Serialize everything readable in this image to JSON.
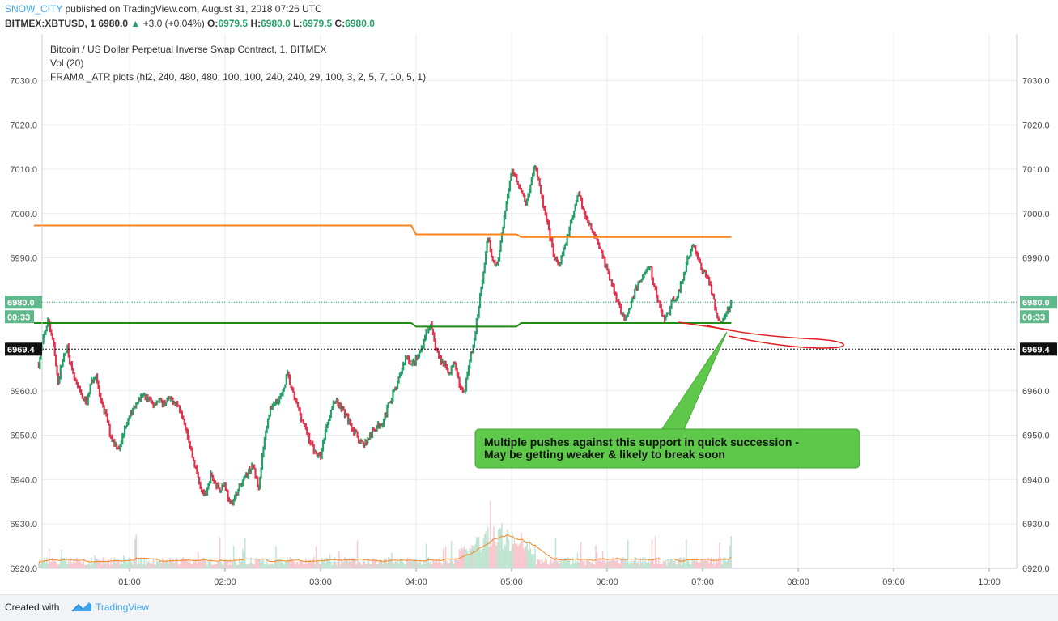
{
  "header": {
    "author": "SNOW_CITY",
    "published": "published on TradingView.com, August 31, 2018 07:26 UTC",
    "symbol": "BITMEX:XBTUSD, 1",
    "last": "6980.0",
    "change_arrow": "▲",
    "change": "+3.0 (+0.04%)",
    "o_label": "O:",
    "o": "6979.5",
    "h_label": "H:",
    "h": "6980.0",
    "l_label": "L:",
    "l": "6979.5",
    "c_label": "C:",
    "c": "6980.0"
  },
  "legend": [
    "Bitcoin / US Dollar Perpetual Inverse Swap Contract, 1, BITMEX",
    "Vol (20)",
    "FRAMA _ATR plots (hl2, 240, 480, 480, 100, 100, 240, 240, 29, 100, 3, 2, 5, 7, 10, 5, 1)"
  ],
  "annotation": [
    "Multiple pushes against this support in quick succession -",
    "May be getting weaker & likely to break soon"
  ],
  "footer": {
    "created_with": "Created with",
    "brand": "TradingView"
  },
  "colors": {
    "up": "#26a069",
    "down": "#e0344e",
    "orange": "#f5841f",
    "green_line": "#1e8c10",
    "callout": "#5ec84a",
    "brand": "#3ca6f0"
  },
  "chart_data": {
    "type": "candlestick",
    "y_ticks": [
      "7030.0",
      "7020.0",
      "7010.0",
      "7000.0",
      "6990.0",
      "6980.0",
      "6970.0",
      "6960.0",
      "6950.0",
      "6940.0",
      "6930.0",
      "6920.0"
    ],
    "x_ticks": [
      "01:00",
      "02:00",
      "03:00",
      "04:00",
      "05:00",
      "06:00",
      "07:00",
      "08:00",
      "09:00",
      "10:00"
    ],
    "ylim": [
      6919,
      7035
    ],
    "xlim_hours": [
      0.0,
      10.22
    ],
    "last_price_label": "6980.0",
    "countdown": "00:33",
    "crosshair_price": "6969.4",
    "close_path": [
      [
        0.05,
        6966
      ],
      [
        0.1,
        6972
      ],
      [
        0.15,
        6976
      ],
      [
        0.2,
        6971
      ],
      [
        0.25,
        6962
      ],
      [
        0.3,
        6967
      ],
      [
        0.35,
        6970
      ],
      [
        0.4,
        6964
      ],
      [
        0.45,
        6961
      ],
      [
        0.5,
        6959
      ],
      [
        0.55,
        6957
      ],
      [
        0.6,
        6962
      ],
      [
        0.65,
        6964
      ],
      [
        0.7,
        6957
      ],
      [
        0.75,
        6955
      ],
      [
        0.8,
        6950
      ],
      [
        0.85,
        6948
      ],
      [
        0.9,
        6947
      ],
      [
        0.95,
        6952
      ],
      [
        1.0,
        6954
      ],
      [
        1.05,
        6957
      ],
      [
        1.1,
        6958
      ],
      [
        1.15,
        6959
      ],
      [
        1.2,
        6958
      ],
      [
        1.25,
        6957
      ],
      [
        1.3,
        6958
      ],
      [
        1.35,
        6957
      ],
      [
        1.4,
        6958
      ],
      [
        1.45,
        6958
      ],
      [
        1.5,
        6957
      ],
      [
        1.55,
        6955
      ],
      [
        1.6,
        6951
      ],
      [
        1.65,
        6946
      ],
      [
        1.7,
        6942
      ],
      [
        1.75,
        6938
      ],
      [
        1.8,
        6936
      ],
      [
        1.85,
        6941
      ],
      [
        1.9,
        6939
      ],
      [
        1.95,
        6938
      ],
      [
        2.0,
        6939
      ],
      [
        2.05,
        6934
      ],
      [
        2.1,
        6936
      ],
      [
        2.15,
        6938
      ],
      [
        2.2,
        6940
      ],
      [
        2.25,
        6942
      ],
      [
        2.3,
        6943
      ],
      [
        2.35,
        6938
      ],
      [
        2.4,
        6947
      ],
      [
        2.45,
        6954
      ],
      [
        2.5,
        6957
      ],
      [
        2.55,
        6958
      ],
      [
        2.6,
        6959
      ],
      [
        2.65,
        6964
      ],
      [
        2.7,
        6960
      ],
      [
        2.75,
        6957
      ],
      [
        2.8,
        6954
      ],
      [
        2.85,
        6951
      ],
      [
        2.9,
        6948
      ],
      [
        2.95,
        6946
      ],
      [
        3.0,
        6945
      ],
      [
        3.05,
        6951
      ],
      [
        3.1,
        6955
      ],
      [
        3.15,
        6958
      ],
      [
        3.2,
        6957
      ],
      [
        3.25,
        6955
      ],
      [
        3.3,
        6953
      ],
      [
        3.35,
        6951
      ],
      [
        3.4,
        6949
      ],
      [
        3.45,
        6948
      ],
      [
        3.5,
        6949
      ],
      [
        3.55,
        6951
      ],
      [
        3.6,
        6952
      ],
      [
        3.65,
        6953
      ],
      [
        3.7,
        6956
      ],
      [
        3.75,
        6959
      ],
      [
        3.8,
        6961
      ],
      [
        3.85,
        6965
      ],
      [
        3.9,
        6968
      ],
      [
        3.95,
        6966
      ],
      [
        4.0,
        6967
      ],
      [
        4.05,
        6969
      ],
      [
        4.1,
        6973
      ],
      [
        4.15,
        6975
      ],
      [
        4.2,
        6970
      ],
      [
        4.25,
        6967
      ],
      [
        4.3,
        6966
      ],
      [
        4.35,
        6964
      ],
      [
        4.4,
        6966
      ],
      [
        4.45,
        6962
      ],
      [
        4.5,
        6959
      ],
      [
        4.55,
        6966
      ],
      [
        4.6,
        6970
      ],
      [
        4.65,
        6978
      ],
      [
        4.7,
        6986
      ],
      [
        4.75,
        6995
      ],
      [
        4.8,
        6990
      ],
      [
        4.85,
        6988
      ],
      [
        4.9,
        6995
      ],
      [
        4.95,
        7003
      ],
      [
        5.0,
        7010
      ],
      [
        5.05,
        7008
      ],
      [
        5.1,
        7005
      ],
      [
        5.15,
        7002
      ],
      [
        5.2,
        7007
      ],
      [
        5.25,
        7011
      ],
      [
        5.3,
        7005
      ],
      [
        5.35,
        7000
      ],
      [
        5.4,
        6995
      ],
      [
        5.45,
        6990
      ],
      [
        5.5,
        6988
      ],
      [
        5.55,
        6992
      ],
      [
        5.6,
        6996
      ],
      [
        5.65,
        7000
      ],
      [
        5.7,
        7005
      ],
      [
        5.75,
        7001
      ],
      [
        5.8,
        6998
      ],
      [
        5.85,
        6996
      ],
      [
        5.9,
        6994
      ],
      [
        5.95,
        6991
      ],
      [
        6.0,
        6987
      ],
      [
        6.05,
        6984
      ],
      [
        6.1,
        6981
      ],
      [
        6.15,
        6978
      ],
      [
        6.2,
        6976
      ],
      [
        6.25,
        6980
      ],
      [
        6.3,
        6983
      ],
      [
        6.35,
        6985
      ],
      [
        6.4,
        6987
      ],
      [
        6.45,
        6988
      ],
      [
        6.5,
        6983
      ],
      [
        6.55,
        6979
      ],
      [
        6.6,
        6976
      ],
      [
        6.65,
        6978
      ],
      [
        6.7,
        6981
      ],
      [
        6.75,
        6982
      ],
      [
        6.8,
        6986
      ],
      [
        6.85,
        6990
      ],
      [
        6.9,
        6993
      ],
      [
        6.95,
        6990
      ],
      [
        7.0,
        6987
      ],
      [
        7.05,
        6986
      ],
      [
        7.1,
        6982
      ],
      [
        7.15,
        6977
      ],
      [
        7.2,
        6975
      ],
      [
        7.25,
        6978
      ],
      [
        7.3,
        6980
      ]
    ],
    "volume_peak_hour": 4.85,
    "frama_orange": [
      [
        0.0,
        6997.3
      ],
      [
        3.95,
        6997.3
      ],
      [
        4.0,
        6995.3
      ],
      [
        5.05,
        6995.3
      ],
      [
        5.1,
        6994.7
      ],
      [
        7.3,
        6994.7
      ]
    ],
    "frama_green": [
      [
        0.0,
        6975.3
      ],
      [
        3.95,
        6975.3
      ],
      [
        4.0,
        6974.5
      ],
      [
        5.05,
        6974.5
      ],
      [
        5.1,
        6975.3
      ],
      [
        7.3,
        6975.3
      ]
    ]
  }
}
